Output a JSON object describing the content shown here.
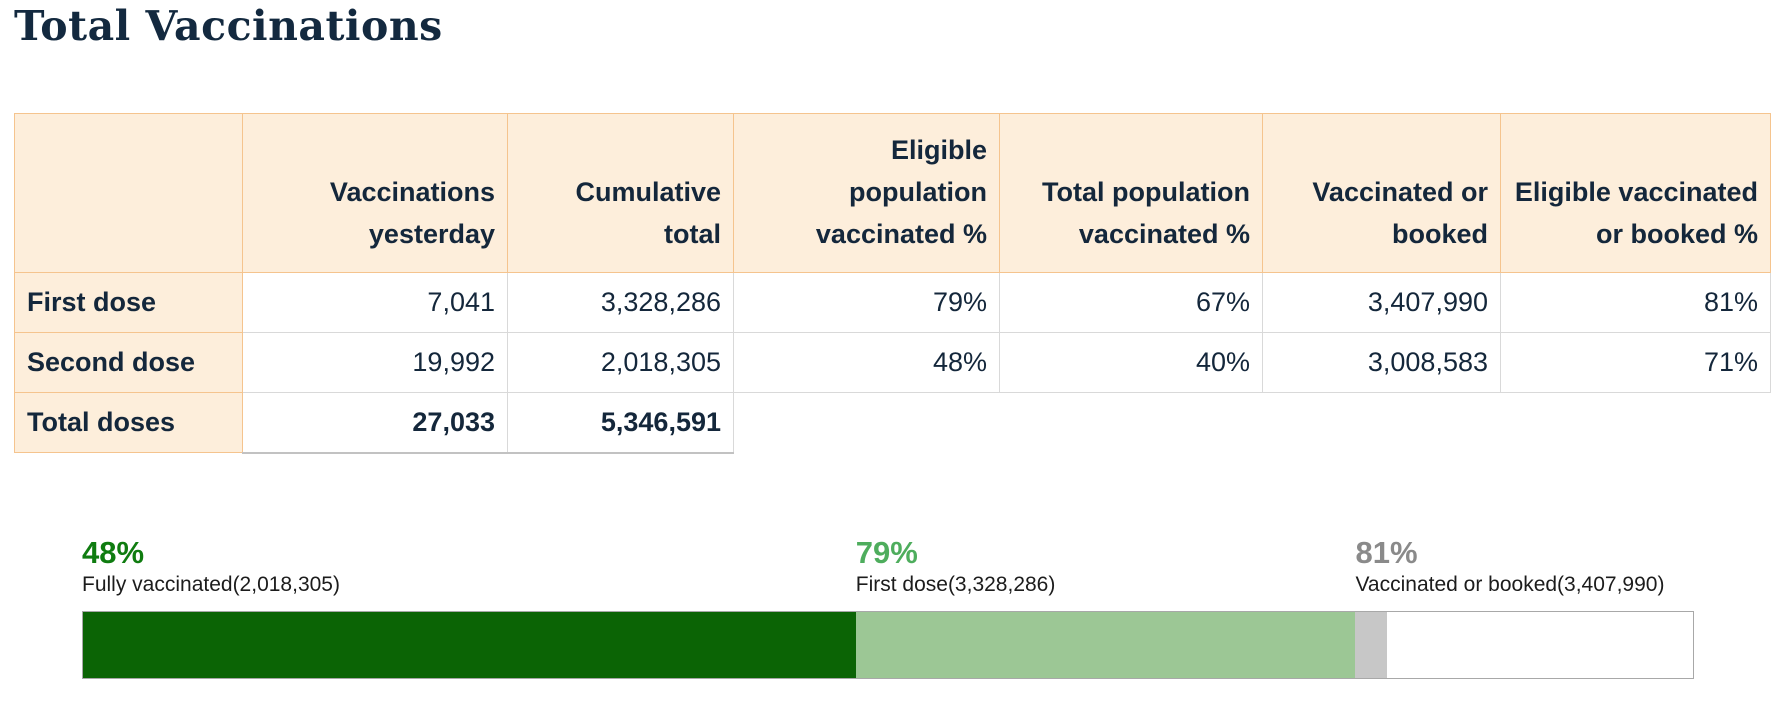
{
  "page": {
    "title": "Total Vaccinations"
  },
  "colors": {
    "navy_text": "#14273b",
    "peach_bg": "#fdeedb",
    "peach_border": "#f5c48e",
    "gray_cell_border": "#d9d9d9",
    "bar_dark_green": "#0b6405",
    "bar_light_green": "#9cc795",
    "bar_gray": "#c7c7c7",
    "bar_outline": "#a8a8a8",
    "pct_dark_green": "#0f7c10",
    "pct_light_green": "#4ead5d",
    "pct_gray": "#8a8a8a"
  },
  "table": {
    "columns": [
      "",
      "Vaccinations yesterday",
      "Cumulative total",
      "Eligible population vaccinated %",
      "Total population vaccinated %",
      "Vaccinated or booked",
      "Eligible vaccinated or booked %"
    ],
    "rows": [
      {
        "label": "First dose",
        "values": [
          "7,041",
          "3,328,286",
          "79%",
          "67%",
          "3,407,990",
          "81%"
        ]
      },
      {
        "label": "Second dose",
        "values": [
          "19,992",
          "2,018,305",
          "48%",
          "40%",
          "3,008,583",
          "71%"
        ]
      },
      {
        "label": "Total doses",
        "values": [
          "27,033",
          "5,346,591",
          "",
          "",
          "",
          ""
        ]
      }
    ]
  },
  "progress": {
    "segments": [
      {
        "pct": "48%",
        "label": "Fully vaccinated(2,018,305)",
        "start": 0,
        "end": 48,
        "bar_color": "#0b6405",
        "pct_color": "#0f7c10"
      },
      {
        "pct": "79%",
        "label": "First dose(3,328,286)",
        "start": 48,
        "end": 79,
        "bar_color": "#9cc795",
        "pct_color": "#4ead5d"
      },
      {
        "pct": "81%",
        "label": "Vaccinated or booked(3,407,990)",
        "start": 79,
        "end": 81,
        "bar_color": "#c7c7c7",
        "pct_color": "#8a8a8a"
      }
    ]
  },
  "chart_data": [
    {
      "type": "table",
      "title": "Total Vaccinations",
      "columns": [
        "",
        "Vaccinations yesterday",
        "Cumulative total",
        "Eligible population vaccinated %",
        "Total population vaccinated %",
        "Vaccinated or booked",
        "Eligible vaccinated or booked %"
      ],
      "rows": [
        [
          "First dose",
          "7,041",
          "3,328,286",
          "79%",
          "67%",
          "3,407,990",
          "81%"
        ],
        [
          "Second dose",
          "19,992",
          "2,018,305",
          "48%",
          "40%",
          "3,008,583",
          "71%"
        ],
        [
          "Total doses",
          "27,033",
          "5,346,591",
          "",
          "",
          "",
          ""
        ]
      ]
    },
    {
      "type": "bar",
      "subtype": "stacked-progress-single-track",
      "xlim": [
        0,
        100
      ],
      "grid": false,
      "legend": "inline-above",
      "series": [
        {
          "name": "Fully vaccinated",
          "pct": 48,
          "count": 2018305
        },
        {
          "name": "First dose",
          "pct": 79,
          "count": 3328286
        },
        {
          "name": "Vaccinated or booked",
          "pct": 81,
          "count": 3407990
        }
      ]
    }
  ]
}
